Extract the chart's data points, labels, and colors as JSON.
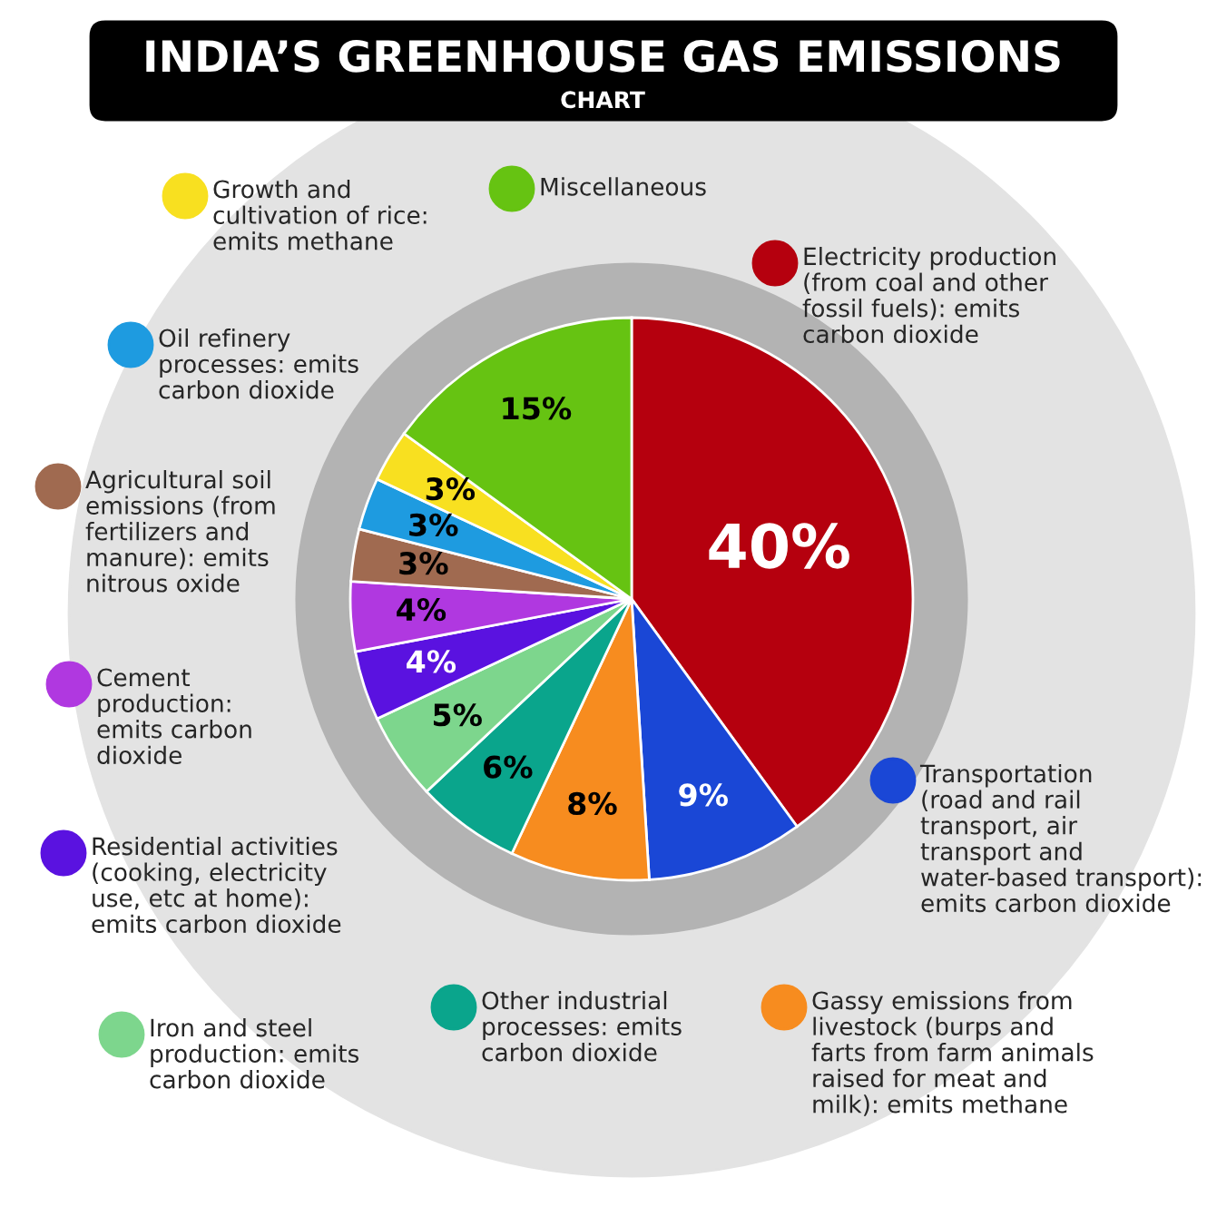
{
  "chart_data": {
    "type": "pie",
    "title": "INDIA’S GREENHOUSE GAS EMISSIONS",
    "subtitle": "CHART",
    "categories": [
      "Electricity production\n(from coal and other\nfossil fuels): emits\ncarbon dioxide",
      "Transportation\n(road and rail\ntransport, air\ntransport and\nwater-based transport):\nemits carbon dioxide",
      "Gassy emissions from\nlivestock (burps and\nfarts from farm animals\nraised for meat and\nmilk): emits methane",
      "Other industrial\nprocesses: emits\ncarbon dioxide",
      "Iron and steel\nproduction: emits\ncarbon dioxide",
      "Residential activities\n(cooking, electricity\nuse, etc at home):\nemits carbon dioxide",
      "Cement\nproduction:\nemits carbon\ndioxide",
      "Agricultural soil\nemissions (from\nfertilizers and\nmanure): emits\nnitrous oxide",
      "Oil refinery\nprocesses: emits\ncarbon dioxide",
      "Growth and\ncultivation of rice:\nemits methane",
      "Miscellaneous"
    ],
    "values": [
      40,
      9,
      8,
      6,
      5,
      4,
      4,
      3,
      3,
      3,
      15
    ],
    "legend": "left",
    "value_labels": [
      "40%",
      "9%",
      "8%",
      "6%",
      "5%",
      "4%",
      "4%",
      "3%",
      "3%",
      "3%",
      "15%"
    ],
    "colors": [
      "#b5000e",
      "#1a47d6",
      "#f78c1f",
      "#0aa58c",
      "#7dd68d",
      "#5a12e0",
      "#b038e0",
      "#a06a50",
      "#1e9be0",
      "#f8e020",
      "#66c312"
    ]
  }
}
